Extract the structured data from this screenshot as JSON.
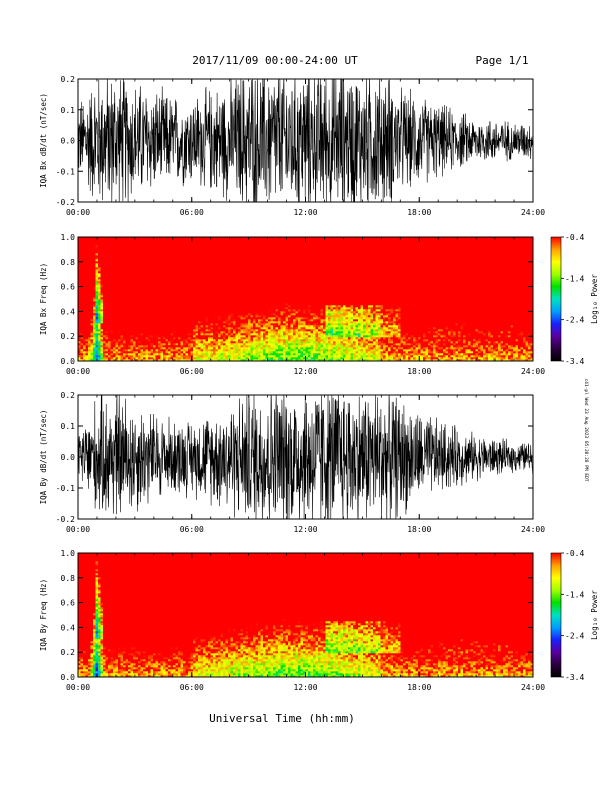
{
  "header": {
    "title": "2017/11/09  00:00-24:00 UT",
    "page": "Page 1/1"
  },
  "footer": {
    "xlabel": "Universal Time (hh:mm)",
    "sidebar_stamp": "c41-pl Wed 23 Aug 2023 05:20:28 PM EDT"
  },
  "colorbar_colors": [
    "#000000",
    "#2a0040",
    "#5a00a0",
    "#1a20ff",
    "#00a0ff",
    "#00e0c0",
    "#00e000",
    "#a0ff00",
    "#ffff00",
    "#ffa000",
    "#ff0000"
  ],
  "chart_data": [
    {
      "type": "line",
      "ylabel": "IQA Bx dB/dt (nT/sec)",
      "xlim": [
        0,
        24
      ],
      "ylim": [
        -0.2,
        0.2
      ],
      "xticks": [
        "00:00",
        "06:00",
        "12:00",
        "18:00",
        "24:00"
      ],
      "yticks": [
        "-0.2",
        "-0.1",
        "0.0",
        "0.1",
        "0.2"
      ],
      "series": [
        {
          "x": [
            0,
            1,
            2,
            3,
            4,
            5,
            6,
            7,
            8,
            9,
            10,
            11,
            12,
            13,
            14,
            15,
            16,
            17,
            18,
            19,
            20,
            21,
            22,
            23,
            24
          ],
          "amplitude": [
            0.1,
            0.18,
            0.19,
            0.16,
            0.14,
            0.12,
            0.12,
            0.14,
            0.16,
            0.2,
            0.2,
            0.2,
            0.2,
            0.2,
            0.2,
            0.19,
            0.2,
            0.14,
            0.12,
            0.1,
            0.08,
            0.06,
            0.06,
            0.05,
            0.05
          ]
        }
      ]
    },
    {
      "type": "heatmap",
      "ylabel": "IQA Bx Freq (Hz)",
      "colorbar_label": "Log₁₀ Power",
      "colorbar_ticks": [
        "-0.4",
        "-1.4",
        "-2.4",
        "-3.4"
      ],
      "clim": [
        -3.4,
        -0.4
      ],
      "xlim": [
        0,
        24
      ],
      "ylim": [
        0.0,
        1.0
      ],
      "xticks": [
        "00:00",
        "06:00",
        "12:00",
        "18:00",
        "24:00"
      ],
      "yticks": [
        "0.0",
        "0.2",
        "0.4",
        "0.6",
        "0.8",
        "1.0"
      ]
    },
    {
      "type": "line",
      "ylabel": "IQA By dB/dt (nT/sec)",
      "xlim": [
        0,
        24
      ],
      "ylim": [
        -0.2,
        0.2
      ],
      "xticks": [
        "00:00",
        "06:00",
        "12:00",
        "18:00",
        "24:00"
      ],
      "yticks": [
        "-0.2",
        "-0.1",
        "0.0",
        "0.1",
        "0.2"
      ],
      "series": [
        {
          "x": [
            0,
            1,
            2,
            3,
            4,
            5,
            6,
            7,
            8,
            9,
            10,
            11,
            12,
            13,
            14,
            15,
            16,
            17,
            18,
            19,
            20,
            21,
            22,
            23,
            24
          ],
          "amplitude": [
            0.06,
            0.16,
            0.18,
            0.15,
            0.12,
            0.1,
            0.1,
            0.12,
            0.15,
            0.18,
            0.2,
            0.2,
            0.2,
            0.2,
            0.2,
            0.18,
            0.19,
            0.16,
            0.12,
            0.1,
            0.08,
            0.06,
            0.05,
            0.04,
            0.04
          ]
        }
      ]
    },
    {
      "type": "heatmap",
      "ylabel": "IQA By Freq (Hz)",
      "colorbar_label": "Log₁₀ Power",
      "colorbar_ticks": [
        "-0.4",
        "-1.4",
        "-2.4",
        "-3.4"
      ],
      "clim": [
        -3.4,
        -0.4
      ],
      "xlim": [
        0,
        24
      ],
      "ylim": [
        0.0,
        1.0
      ],
      "xticks": [
        "00:00",
        "06:00",
        "12:00",
        "18:00",
        "24:00"
      ],
      "yticks": [
        "0.0",
        "0.2",
        "0.4",
        "0.6",
        "0.8",
        "1.0"
      ]
    }
  ]
}
